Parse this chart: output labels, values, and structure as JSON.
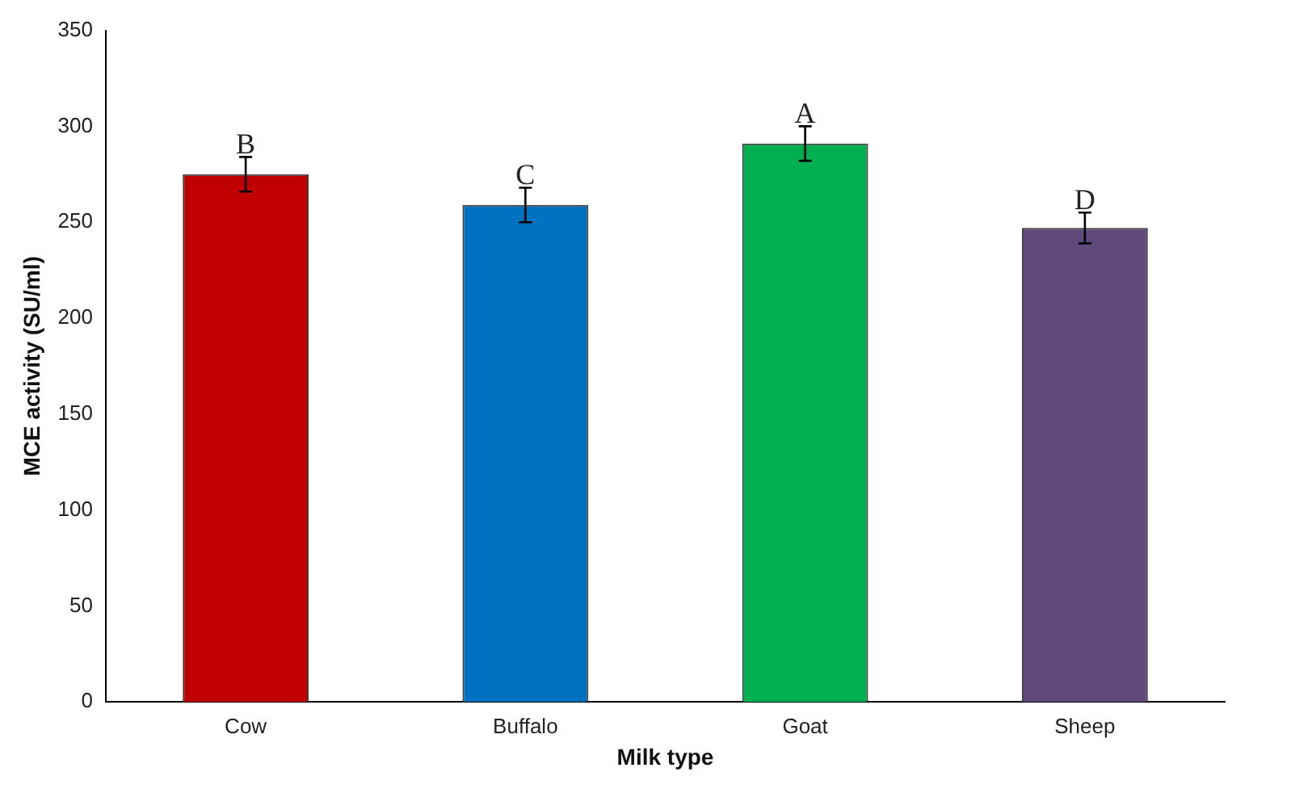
{
  "chart_data": {
    "type": "bar",
    "xlabel": "Milk type",
    "ylabel": "MCE activity (SU/ml)",
    "categories": [
      "Cow",
      "Buffalo",
      "Goat",
      "Sheep"
    ],
    "values": [
      275,
      259,
      291,
      247
    ],
    "colors": [
      "#c00000",
      "#0070c0",
      "#00b050",
      "#604a7b"
    ],
    "errors": [
      9,
      9,
      9,
      8
    ],
    "ylim": [
      0,
      350
    ],
    "yticks": [
      0,
      50,
      100,
      150,
      200,
      250,
      300,
      350
    ],
    "grid": false,
    "legend": false,
    "annotations": [
      {
        "text": "B",
        "x": "Cow",
        "y": 284
      },
      {
        "text": "C",
        "x": "Buffalo",
        "y": 268
      },
      {
        "text": "A",
        "x": "Goat",
        "y": 300
      },
      {
        "text": "D",
        "x": "Sheep",
        "y": 255
      }
    ]
  }
}
